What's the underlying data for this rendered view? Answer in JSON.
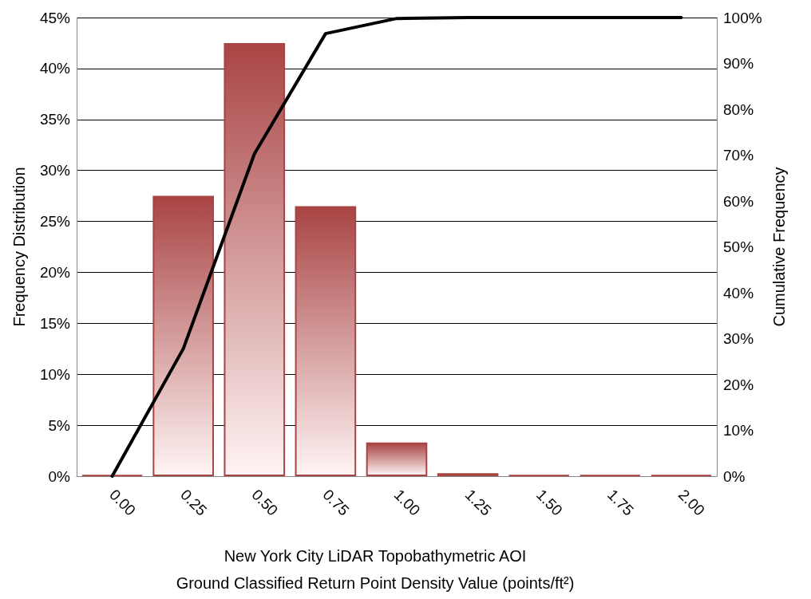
{
  "chart_data": {
    "type": "bar",
    "xlabel": "New York City LiDAR Topobathymetric AOI\nGround Classified Return Point Density Value (points/ft²)",
    "ylabel": "Frequency Distribution",
    "y2label": "Cumulative Frequency",
    "categories": [
      "0.00",
      "0.25",
      "0.50",
      "0.75",
      "1.00",
      "1.25",
      "1.50",
      "1.75",
      "2.00"
    ],
    "series": [
      {
        "color": "#a94444",
        "values": [
          0.1,
          27.5,
          42.5,
          26.5,
          3.3,
          0.3,
          0.1,
          0.1,
          0.1
        ]
      },
      {
        "type": "line",
        "axis": "y2",
        "color": "#000000",
        "values": [
          0,
          27.8,
          70.3,
          96.5,
          99.8,
          100,
          100,
          100,
          100
        ]
      }
    ],
    "ylim": [
      0,
      45
    ],
    "yticks": [
      {
        "value": 0,
        "label": "0%"
      },
      {
        "value": 5,
        "label": "5%"
      },
      {
        "value": 10,
        "label": "10%"
      },
      {
        "value": 15,
        "label": "15%"
      },
      {
        "value": 20,
        "label": "20%"
      },
      {
        "value": 25,
        "label": "25%"
      },
      {
        "value": 30,
        "label": "30%"
      },
      {
        "value": 35,
        "label": "35%"
      },
      {
        "value": 40,
        "label": "40%"
      },
      {
        "value": 45,
        "label": "45%"
      }
    ],
    "y2lim": [
      0,
      100
    ],
    "y2ticks": [
      {
        "value": 0,
        "label": "0%"
      },
      {
        "value": 10,
        "label": "10%"
      },
      {
        "value": 20,
        "label": "20%"
      },
      {
        "value": 30,
        "label": "30%"
      },
      {
        "value": 40,
        "label": "40%"
      },
      {
        "value": 50,
        "label": "50%"
      },
      {
        "value": 60,
        "label": "60%"
      },
      {
        "value": 70,
        "label": "70%"
      },
      {
        "value": 80,
        "label": "80%"
      },
      {
        "value": 90,
        "label": "90%"
      },
      {
        "value": 100,
        "label": "100%"
      }
    ],
    "grid": "y",
    "marker": "none",
    "line_style": "solid"
  }
}
